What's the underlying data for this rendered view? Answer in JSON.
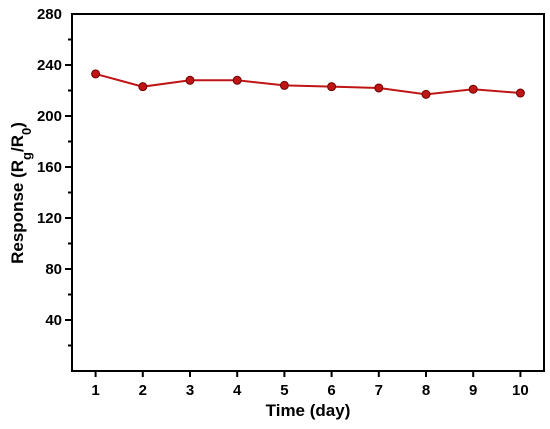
{
  "chart_data": {
    "type": "line",
    "title": "",
    "xlabel": "Time (day)",
    "ylabel": {
      "prefix": "Response (R",
      "sub1": "g",
      "mid": "/R",
      "sub2": "0",
      "suffix": ")"
    },
    "x": [
      1,
      2,
      3,
      4,
      5,
      6,
      7,
      8,
      9,
      10
    ],
    "xticks": [
      "1",
      "2",
      "3",
      "4",
      "5",
      "6",
      "7",
      "8",
      "9",
      "10"
    ],
    "yticks": [
      "40",
      "80",
      "120",
      "160",
      "200",
      "240",
      "280"
    ],
    "xlim": [
      0.5,
      10.5
    ],
    "ylim": [
      0,
      280
    ],
    "grid": false,
    "series": [
      {
        "values": [
          233,
          223,
          228,
          228,
          224,
          223,
          222,
          217,
          221,
          218
        ],
        "color": "#c01515"
      }
    ]
  }
}
